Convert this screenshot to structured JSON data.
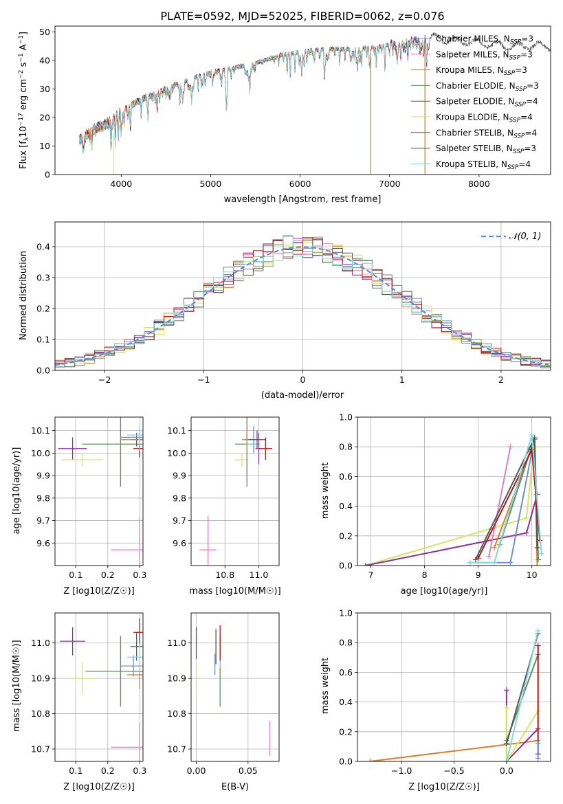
{
  "colors": {
    "Chabrier MILES": "#6a8fd6",
    "Salpeter MILES": "#e47fb3",
    "Kroupa MILES": "#e07b22",
    "Chabrier ELODIE": "#5e8f5e",
    "Salpeter ELODIE": "#8e2ea0",
    "Kroupa ELODIE": "#cfe95a",
    "Chabrier STELIB": "#555555",
    "Salpeter STELIB": "#b01515",
    "Kroupa STELIB": "#7fd8e0",
    "normal": "#5b8fd6"
  },
  "chart_data": [
    {
      "id": "spectrum",
      "type": "line",
      "title": "PLATE=0592, MJD=52025, FIBERID=0062, z=0.076",
      "xlabel": "wavelength [Angstrom, rest frame]",
      "ylabel_parts": [
        "Flux [f",
        "λ",
        "10",
        "−17",
        " erg cm",
        "−2",
        " s",
        "−1",
        " A",
        "−1",
        "]"
      ],
      "xlim": [
        3260,
        8800
      ],
      "ylim": [
        0,
        52
      ],
      "xticks": [
        4000,
        5000,
        6000,
        7000,
        8000
      ],
      "yticks": [
        0,
        10,
        20,
        30,
        40,
        50
      ],
      "grid": false,
      "legend_position": "lower-right",
      "continuum_x": [
        3530,
        3700,
        3900,
        4000,
        4200,
        4500,
        4800,
        5000,
        5200,
        5500,
        5800,
        6000,
        6300,
        6600,
        6900,
        7100,
        7300,
        7500,
        7700,
        8000,
        8300,
        8500
      ],
      "continuum_y": [
        12,
        16,
        19,
        22,
        26,
        30,
        34,
        36,
        37,
        39,
        42,
        43,
        44,
        44,
        45,
        46,
        47,
        48,
        47,
        46,
        45,
        45
      ],
      "series": [
        {
          "name": "Chabrier MILES",
          "label_parts": [
            "Chabrier MILES, N",
            "SSP",
            "=3"
          ],
          "xmax": 7420
        },
        {
          "name": "Salpeter MILES",
          "label_parts": [
            "Salpeter MILES, N",
            "SSP",
            "=3"
          ],
          "xmax": 7420
        },
        {
          "name": "Kroupa MILES",
          "label_parts": [
            "Kroupa MILES, N",
            "SSP",
            "=3"
          ],
          "xmax": 7420
        },
        {
          "name": "Chabrier ELODIE",
          "label_parts": [
            "Chabrier ELODIE, N",
            "SSP",
            "=3"
          ],
          "xmax": 6780
        },
        {
          "name": "Salpeter ELODIE",
          "label_parts": [
            "Salpeter ELODIE, N",
            "SSP",
            "=4"
          ],
          "xmax": 6780
        },
        {
          "name": "Kroupa ELODIE",
          "label_parts": [
            "Kroupa ELODIE, N",
            "SSP",
            "=4"
          ],
          "xmax": 6780
        },
        {
          "name": "Chabrier STELIB",
          "label_parts": [
            "Chabrier STELIB, N",
            "SSP",
            "=4"
          ],
          "xmax": 8800
        },
        {
          "name": "Salpeter STELIB",
          "label_parts": [
            "Salpeter STELIB, N",
            "SSP",
            "=3"
          ],
          "xmax": 7420
        },
        {
          "name": "Kroupa STELIB",
          "label_parts": [
            "Kroupa STELIB, N",
            "SSP",
            "=4"
          ],
          "xmax": 7420
        }
      ]
    },
    {
      "id": "residuals",
      "type": "step",
      "xlabel": "(data-model)/error",
      "ylabel": "Normed distribution",
      "xlim": [
        -2.5,
        2.5
      ],
      "ylim": [
        0,
        0.48
      ],
      "xticks": [
        -2,
        -1,
        0,
        1,
        2
      ],
      "xtick_labels": [
        "−2",
        "−1",
        "0",
        "1",
        "2"
      ],
      "yticks": [
        0,
        0.1,
        0.2,
        0.3,
        0.4
      ],
      "ytick_labels": [
        "0.0",
        "0.1",
        "0.2",
        "0.3",
        "0.4"
      ],
      "grid": true,
      "legend_position": "upper-right",
      "bin_width": 0.1,
      "normal_curve": {
        "label": "𝒩(0, 1)",
        "mean": 0,
        "sigma": 1
      }
    },
    {
      "id": "age-vs-metallicity",
      "type": "scatter",
      "xlabel": "Z [log10(Z/Z☉)]",
      "ylabel": "age  [log10(age/yr)]",
      "xlim": [
        0.035,
        0.31
      ],
      "ylim": [
        9.5,
        10.16
      ],
      "xticks": [
        0.1,
        0.2,
        0.3
      ],
      "xtick_labels": [
        "0.1",
        "0.2",
        "0.3"
      ],
      "yticks": [
        9.6,
        9.7,
        9.8,
        9.9,
        10.0,
        10.1
      ],
      "ytick_labels": [
        "9.6",
        "9.7",
        "9.8",
        "9.9",
        "10.0",
        "10.1"
      ],
      "grid": true,
      "points": [
        {
          "series": "Salpeter ELODIE",
          "x": 0.09,
          "y": 10.02,
          "xerr": 0.045,
          "yerr": 0.05
        },
        {
          "series": "Kroupa ELODIE",
          "x": 0.12,
          "y": 9.97,
          "xerr": 0.065,
          "yerr": 0.03
        },
        {
          "series": "Chabrier ELODIE",
          "x": 0.24,
          "y": 10.04,
          "xerr": 0.12,
          "yerr": 0.19
        },
        {
          "series": "Chabrier STELIB",
          "x": 0.29,
          "y": 10.06,
          "xerr": 0.02,
          "yerr": 0.03
        },
        {
          "series": "Salpeter STELIB",
          "x": 0.3,
          "y": 10.02,
          "xerr": 0.02,
          "yerr": 0.04
        },
        {
          "series": "Kroupa MILES",
          "x": 0.3,
          "y": 10.06,
          "xerr": 0.06,
          "yerr": 0.05
        },
        {
          "series": "Chabrier MILES",
          "x": 0.3,
          "y": 10.07,
          "xerr": 0.06,
          "yerr": 0.05
        },
        {
          "series": "Kroupa STELIB",
          "x": 0.3,
          "y": 10.08,
          "xerr": 0.04,
          "yerr": 0.04
        },
        {
          "series": "Salpeter MILES",
          "x": 0.3,
          "y": 9.57,
          "xerr": 0.09,
          "yerr": 0.14
        }
      ]
    },
    {
      "id": "age-vs-mass",
      "type": "scatter",
      "xlabel": "mass [log10(M/M☉)]",
      "xlim": [
        10.6,
        11.12
      ],
      "ylim": [
        9.5,
        10.16
      ],
      "xticks": [
        10.8,
        11.0
      ],
      "xtick_labels": [
        "10.8",
        "11.0"
      ],
      "yticks": [
        9.6,
        9.7,
        9.8,
        9.9,
        10.0,
        10.1
      ],
      "ytick_labels": [
        "9.6",
        "9.7",
        "9.8",
        "9.9",
        "10.0",
        "10.1"
      ],
      "grid": true,
      "points": [
        {
          "series": "Salpeter MILES",
          "x": 10.7,
          "y": 9.57,
          "xerr": 0.05,
          "yerr": 0.15
        },
        {
          "series": "Kroupa ELODIE",
          "x": 10.9,
          "y": 9.97,
          "xerr": 0.04,
          "yerr": 0.03
        },
        {
          "series": "Chabrier ELODIE",
          "x": 10.93,
          "y": 10.04,
          "xerr": 0.07,
          "yerr": 0.19
        },
        {
          "series": "Kroupa MILES",
          "x": 10.93,
          "y": 10.06,
          "xerr": 0.03,
          "yerr": 0.05
        },
        {
          "series": "Kroupa STELIB",
          "x": 10.97,
          "y": 10.04,
          "xerr": 0.04,
          "yerr": 0.04
        },
        {
          "series": "Chabrier MILES",
          "x": 10.97,
          "y": 10.06,
          "xerr": 0.05,
          "yerr": 0.06
        },
        {
          "series": "Chabrier STELIB",
          "x": 10.99,
          "y": 10.06,
          "xerr": 0.05,
          "yerr": 0.04
        },
        {
          "series": "Salpeter ELODIE",
          "x": 11.0,
          "y": 10.02,
          "xerr": 0.02,
          "yerr": 0.07
        },
        {
          "series": "Salpeter STELIB",
          "x": 11.04,
          "y": 10.02,
          "xerr": 0.04,
          "yerr": 0.05
        }
      ]
    },
    {
      "id": "mass-weight-vs-age",
      "type": "line",
      "xlabel": "age  [log10(age/yr)]",
      "ylabel": "mass weight",
      "xlim": [
        6.75,
        10.35
      ],
      "ylim": [
        0,
        1
      ],
      "xticks": [
        7,
        8,
        9,
        10
      ],
      "xtick_labels": [
        "7",
        "8",
        "9",
        "10"
      ],
      "yticks": [
        0,
        0.2,
        0.4,
        0.6,
        0.8,
        1.0
      ],
      "ytick_labels": [
        "0.0",
        "0.2",
        "0.4",
        "0.6",
        "0.8",
        "1.0"
      ],
      "grid": true,
      "series": [
        {
          "name": "Kroupa ELODIE",
          "x": [
            6.9,
            9.9,
            10.05
          ],
          "y": [
            0.0,
            0.32,
            0.85
          ]
        },
        {
          "name": "Salpeter ELODIE",
          "x": [
            6.9,
            9.9,
            10.1
          ],
          "y": [
            0.0,
            0.22,
            0.48
          ]
        },
        {
          "name": "Salpeter MILES",
          "x": [
            9.2,
            9.6
          ],
          "y": [
            0.06,
            0.8
          ]
        },
        {
          "name": "Chabrier MILES",
          "x": [
            8.85,
            9.6,
            10.05
          ],
          "y": [
            0.02,
            0.02,
            0.86
          ]
        },
        {
          "name": "Kroupa MILES",
          "x": [
            9.3,
            10.05,
            10.1
          ],
          "y": [
            0.12,
            0.85,
            0.0
          ]
        },
        {
          "name": "Chabrier ELODIE",
          "x": [
            9.4,
            10.05,
            10.12
          ],
          "y": [
            0.14,
            0.86,
            0.04
          ]
        },
        {
          "name": "Chabrier STELIB",
          "x": [
            8.95,
            10.05,
            10.1
          ],
          "y": [
            0.04,
            0.86,
            0.12
          ]
        },
        {
          "name": "Salpeter STELIB",
          "x": [
            9.0,
            10.0,
            10.15
          ],
          "y": [
            0.05,
            0.78,
            0.17
          ]
        },
        {
          "name": "Kroupa STELIB",
          "x": [
            8.85,
            9.3,
            10.0,
            10.18
          ],
          "y": [
            0.02,
            0.02,
            0.88,
            0.08
          ]
        }
      ]
    },
    {
      "id": "mass-vs-metallicity",
      "type": "scatter",
      "xlabel": "Z [log10(Z/Z☉)]",
      "ylabel": "mass [log10(M/M☉)]",
      "xlim": [
        0.035,
        0.31
      ],
      "ylim": [
        10.665,
        11.085
      ],
      "xticks": [
        0.1,
        0.2,
        0.3
      ],
      "xtick_labels": [
        "0.1",
        "0.2",
        "0.3"
      ],
      "yticks": [
        10.7,
        10.8,
        10.9,
        11.0
      ],
      "ytick_labels": [
        "10.7",
        "10.8",
        "10.9",
        "11.0"
      ],
      "grid": true,
      "points": [
        {
          "series": "Salpeter ELODIE",
          "x": 0.09,
          "y": 11.005,
          "xerr": 0.04,
          "yerr": 0.04
        },
        {
          "series": "Kroupa ELODIE",
          "x": 0.12,
          "y": 10.9,
          "xerr": 0.04,
          "yerr": 0.045
        },
        {
          "series": "Chabrier ELODIE",
          "x": 0.24,
          "y": 10.92,
          "xerr": 0.11,
          "yerr": 0.1
        },
        {
          "series": "Chabrier MILES",
          "x": 0.28,
          "y": 10.935,
          "xerr": 0.04,
          "yerr": 0.03
        },
        {
          "series": "Chabrier STELIB",
          "x": 0.29,
          "y": 10.99,
          "xerr": 0.02,
          "yerr": 0.04
        },
        {
          "series": "Salpeter STELIB",
          "x": 0.3,
          "y": 11.03,
          "xerr": 0.02,
          "yerr": 0.04
        },
        {
          "series": "Kroupa MILES",
          "x": 0.3,
          "y": 10.91,
          "xerr": 0.04,
          "yerr": 0.04
        },
        {
          "series": "Kroupa STELIB",
          "x": 0.3,
          "y": 10.96,
          "xerr": 0.04,
          "yerr": 0.04
        },
        {
          "series": "Salpeter MILES",
          "x": 0.3,
          "y": 10.705,
          "xerr": 0.09,
          "yerr": 0.07
        }
      ]
    },
    {
      "id": "mass-vs-extinction",
      "type": "scatter",
      "xlabel": "E(B-V)",
      "xlim": [
        -0.005,
        0.08
      ],
      "ylim": [
        10.665,
        11.085
      ],
      "xticks": [
        0.0,
        0.05
      ],
      "xtick_labels": [
        "0.00",
        "0.05"
      ],
      "yticks": [
        10.7,
        10.8,
        10.9,
        11.0
      ],
      "ytick_labels": [
        "10.7",
        "10.8",
        "10.9",
        "11.0"
      ],
      "grid": true,
      "points": [
        {
          "series": "Salpeter ELODIE",
          "x": 0.0,
          "y": 11.0,
          "xerr": 0,
          "yerr": 0.045
        },
        {
          "series": "Kroupa ELODIE",
          "x": 0.0,
          "y": 10.9,
          "xerr": 0,
          "yerr": 0.045
        },
        {
          "series": "Chabrier MILES",
          "x": 0.018,
          "y": 10.94,
          "xerr": 0,
          "yerr": 0.03
        },
        {
          "series": "Chabrier STELIB",
          "x": 0.019,
          "y": 10.99,
          "xerr": 0,
          "yerr": 0.05
        },
        {
          "series": "Chabrier ELODIE",
          "x": 0.023,
          "y": 10.92,
          "xerr": 0,
          "yerr": 0.1
        },
        {
          "series": "Kroupa MILES",
          "x": 0.023,
          "y": 10.96,
          "xerr": 0,
          "yerr": 0.04
        },
        {
          "series": "Kroupa STELIB",
          "x": 0.023,
          "y": 10.97,
          "xerr": 0,
          "yerr": 0.04
        },
        {
          "series": "Salpeter STELIB",
          "x": 0.023,
          "y": 11.0,
          "xerr": 0,
          "yerr": 0.05
        },
        {
          "series": "Salpeter MILES",
          "x": 0.071,
          "y": 10.73,
          "xerr": 0,
          "yerr": 0.05
        }
      ]
    },
    {
      "id": "mass-weight-vs-metallicity",
      "type": "line",
      "xlabel": "Z [log10(Z/Z☉)]",
      "ylabel": "mass weight",
      "xlim": [
        -1.42,
        0.42
      ],
      "ylim": [
        0,
        1
      ],
      "xticks": [
        -1.0,
        -0.5,
        0.0
      ],
      "xtick_labels": [
        "−1.0",
        "−0.5",
        "0.0"
      ],
      "yticks": [
        0,
        0.2,
        0.4,
        0.6,
        0.8,
        1.0
      ],
      "ytick_labels": [
        "0.0",
        "0.2",
        "0.4",
        "0.6",
        "0.8",
        "1.0"
      ],
      "grid": true,
      "series": [
        {
          "name": "Kroupa MILES",
          "x": [
            -1.3,
            0.3
          ],
          "y": [
            0.0,
            0.14
          ]
        },
        {
          "name": "Salpeter ELODIE",
          "x": [
            0.0,
            0.0,
            0.3
          ],
          "y": [
            0.48,
            0.0,
            0.22
          ]
        },
        {
          "name": "Kroupa ELODIE",
          "x": [
            0.0,
            0.0,
            0.3
          ],
          "y": [
            0.36,
            0.0,
            0.34
          ]
        },
        {
          "name": "Chabrier ELODIE",
          "x": [
            0.0,
            0.3
          ],
          "y": [
            0.14,
            0.72
          ]
        },
        {
          "name": "Chabrier STELIB",
          "x": [
            0.0,
            0.3
          ],
          "y": [
            0.12,
            0.86
          ]
        },
        {
          "name": "Kroupa STELIB",
          "x": [
            0.0,
            0.3
          ],
          "y": [
            0.0,
            0.88
          ]
        },
        {
          "name": "Salpeter STELIB",
          "x": [
            0.3,
            0.3
          ],
          "y": [
            0.78,
            0.05
          ]
        },
        {
          "name": "Chabrier MILES",
          "x": [
            0.3,
            0.3
          ],
          "y": [
            0.02,
            0.12
          ]
        }
      ]
    }
  ]
}
